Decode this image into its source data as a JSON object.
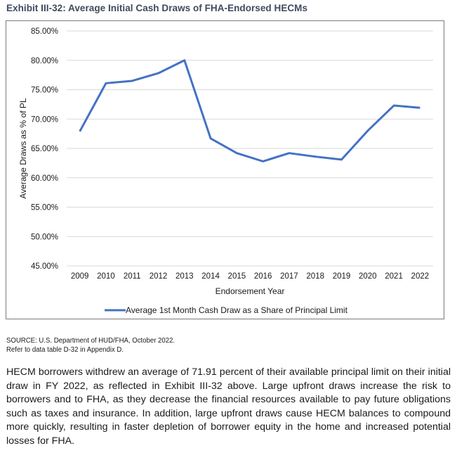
{
  "exhibit_title": "Exhibit III-32: Average Initial Cash Draws of FHA-Endorsed HECMs",
  "chart_data": {
    "type": "line",
    "title": "Exhibit III-32: Average Initial Cash Draws of FHA-Endorsed HECMs",
    "xlabel": "Endorsement Year",
    "ylabel": "Average Draws as % of PL",
    "x": [
      "2009",
      "2010",
      "2011",
      "2012",
      "2013",
      "2014",
      "2015",
      "2016",
      "2017",
      "2018",
      "2019",
      "2020",
      "2021",
      "2022"
    ],
    "series": [
      {
        "name": "Average 1st Month Cash Draw as a Share of Principal Limit",
        "color": "#4472c4",
        "values": [
          67.9,
          76.1,
          76.5,
          77.8,
          80.0,
          66.7,
          64.2,
          62.8,
          64.2,
          63.6,
          63.1,
          68.0,
          72.3,
          71.91
        ]
      }
    ],
    "ylim": [
      45,
      85
    ],
    "yticks": [
      45,
      50,
      55,
      60,
      65,
      70,
      75,
      80,
      85
    ],
    "ytick_labels": [
      "45.00%",
      "50.00%",
      "55.00%",
      "60.00%",
      "65.00%",
      "70.00%",
      "75.00%",
      "80.00%",
      "85.00%"
    ],
    "grid": true,
    "gridline_color": "#d9d9d9",
    "legend_position": "bottom"
  },
  "source": {
    "line1": "SOURCE: U.S. Department of HUD/FHA, October 2022.",
    "line2": "Refer to data table D-32 in Appendix D."
  },
  "paragraph": "HECM borrowers withdrew an average of 71.91 percent of their available principal limit on their initial draw in FY 2022, as reflected in Exhibit III-32 above. Large upfront draws increase the risk to borrowers and to FHA, as they decrease the financial resources available to pay future obligations such as taxes and insurance. In addition, large upfront draws cause HECM balances to compound more quickly, resulting in faster depletion of borrower equity in the home and increased potential losses for FHA."
}
